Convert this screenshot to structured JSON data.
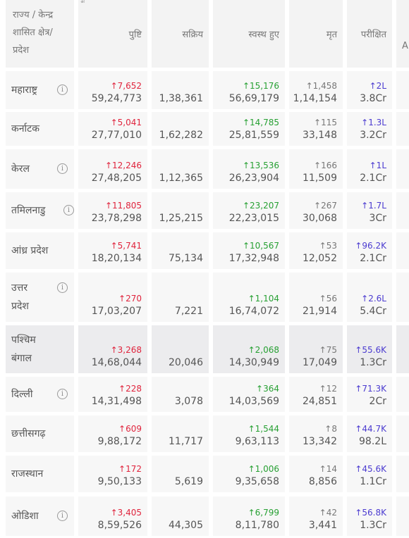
{
  "header": {
    "state_col": "राज्य / केन्द्र शासित क्षेत्र/ प्रदेश",
    "state_lines": [
      "राज्य / केन्द्र",
      "शासित क्षेत्र/",
      "प्रदेश"
    ],
    "confirmed": "पुष्टि",
    "active": "सक्रिय",
    "recovered": "स्वस्थ हुए",
    "deceased": "मृत",
    "tested": "परीक्षित",
    "next_col": "A",
    "sort_glyph": "⇵"
  },
  "info_glyph": "i",
  "arrow": "↑",
  "colors": {
    "confirmed_delta": "#e0243d",
    "recovered_delta": "#27a033",
    "deceased_delta": "#777777",
    "tested_delta": "#4b3bd0",
    "highlight_row": "#ececee"
  },
  "rows": [
    {
      "state": "महाराष्ट्र",
      "lines": [
        "महाराष्ट्र"
      ],
      "info": true,
      "c_delta": "↑7,652",
      "c": "59,24,773",
      "active": "1,38,361",
      "r_delta": "↑15,176",
      "r": "56,69,179",
      "d_delta": "↑1,458",
      "d": "1,14,154",
      "t_delta": "↑2L",
      "t": "3.8Cr"
    },
    {
      "state": "कर्नाटक",
      "lines": [
        "कर्नाटक"
      ],
      "info": false,
      "c_delta": "↑5,041",
      "c": "27,77,010",
      "active": "1,62,282",
      "r_delta": "↑14,785",
      "r": "25,81,559",
      "d_delta": "↑115",
      "d": "33,148",
      "t_delta": "↑1.3L",
      "t": "3.2Cr"
    },
    {
      "state": "केरल",
      "lines": [
        "केरल"
      ],
      "info": true,
      "c_delta": "↑12,246",
      "c": "27,48,205",
      "active": "1,12,365",
      "r_delta": "↑13,536",
      "r": "26,23,904",
      "d_delta": "↑166",
      "d": "11,509",
      "t_delta": "↑1L",
      "t": "2.1Cr"
    },
    {
      "state": "तमिलनाडु",
      "lines": [
        "तमिलनाडु"
      ],
      "info": true,
      "c_delta": "↑11,805",
      "c": "23,78,298",
      "active": "1,25,215",
      "r_delta": "↑23,207",
      "r": "22,23,015",
      "d_delta": "↑267",
      "d": "30,068",
      "t_delta": "↑1.7L",
      "t": "3Cr"
    },
    {
      "state": "आंध्र प्रदेश",
      "lines": [
        "आंध्र प्रदेश"
      ],
      "info": false,
      "c_delta": "↑5,741",
      "c": "18,20,134",
      "active": "75,134",
      "r_delta": "↑10,567",
      "r": "17,32,948",
      "d_delta": "↑53",
      "d": "12,052",
      "t_delta": "↑96.2K",
      "t": "2.1Cr"
    },
    {
      "state": "उत्तर प्रदेश",
      "lines": [
        "उत्तर",
        "प्रदेश"
      ],
      "info": true,
      "c_delta": "↑270",
      "c": "17,03,207",
      "active": "7,221",
      "r_delta": "↑1,104",
      "r": "16,74,072",
      "d_delta": "↑56",
      "d": "21,914",
      "t_delta": "↑2.6L",
      "t": "5.4Cr"
    },
    {
      "state": "पश्चिम बंगाल",
      "lines": [
        "पश्चिम",
        "बंगाल"
      ],
      "info": false,
      "highlight": true,
      "c_delta": "↑3,268",
      "c": "14,68,044",
      "active": "20,046",
      "r_delta": "↑2,068",
      "r": "14,30,949",
      "d_delta": "↑75",
      "d": "17,049",
      "t_delta": "↑55.6K",
      "t": "1.3Cr"
    },
    {
      "state": "दिल्ली",
      "lines": [
        "दिल्ली"
      ],
      "info": true,
      "c_delta": "↑228",
      "c": "14,31,498",
      "active": "3,078",
      "r_delta": "↑364",
      "r": "14,03,569",
      "d_delta": "↑12",
      "d": "24,851",
      "t_delta": "↑71.3K",
      "t": "2Cr"
    },
    {
      "state": "छत्तीसगढ़",
      "lines": [
        "छत्तीसगढ़"
      ],
      "info": false,
      "c_delta": "↑609",
      "c": "9,88,172",
      "active": "11,717",
      "r_delta": "↑1,544",
      "r": "9,63,113",
      "d_delta": "↑8",
      "d": "13,342",
      "t_delta": "↑44.7K",
      "t": "98.2L"
    },
    {
      "state": "राजस्थान",
      "lines": [
        "राजस्थान"
      ],
      "info": false,
      "c_delta": "↑172",
      "c": "9,50,133",
      "active": "5,619",
      "r_delta": "↑1,006",
      "r": "9,35,658",
      "d_delta": "↑14",
      "d": "8,856",
      "t_delta": "↑45.6K",
      "t": "1.1Cr"
    },
    {
      "state": "ओडिशा",
      "lines": [
        "ओडिशा"
      ],
      "info": true,
      "c_delta": "↑3,405",
      "c": "8,59,526",
      "active": "44,305",
      "r_delta": "↑6,799",
      "r": "8,11,780",
      "d_delta": "↑42",
      "d": "3,441",
      "t_delta": "↑56.8K",
      "t": "1.3Cr"
    }
  ]
}
